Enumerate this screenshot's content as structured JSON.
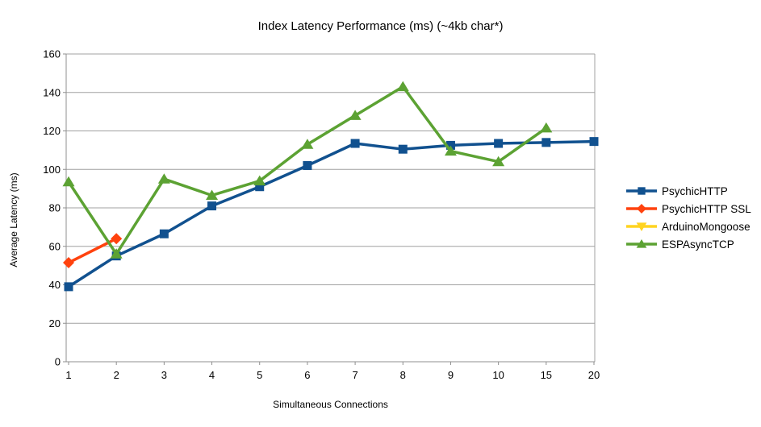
{
  "chart_data": {
    "type": "line",
    "title": "Index Latency Performance (ms) (~4kb char*)",
    "xlabel": "Simultaneous Connections",
    "ylabel": "Average Latency (ms)",
    "categories": [
      "1",
      "2",
      "3",
      "4",
      "5",
      "6",
      "7",
      "8",
      "9",
      "10",
      "15",
      "20"
    ],
    "ylim": [
      0,
      160
    ],
    "ytick_step": 20,
    "yticks": [
      0,
      20,
      40,
      60,
      80,
      100,
      120,
      140,
      160
    ],
    "grid": true,
    "legend_position": "right",
    "colors": {
      "grid": "#a0a0a0",
      "axis": "#8f8f8f",
      "text": "#000000",
      "background": "#ffffff"
    },
    "series": [
      {
        "name": "PsychicHTTP",
        "color": "#11518f",
        "marker": "square",
        "values": [
          39,
          55,
          66.5,
          81,
          91,
          102,
          113.5,
          110.5,
          112.5,
          113.5,
          114,
          114.5
        ]
      },
      {
        "name": "PsychicHTTP SSL",
        "color": "#ff420e",
        "marker": "diamond",
        "values": [
          51.5,
          64,
          null,
          null,
          null,
          null,
          null,
          null,
          null,
          null,
          null,
          null
        ]
      },
      {
        "name": "ArduinoMongoose",
        "color": "#ffd320",
        "marker": "triangle-down",
        "values": [
          null,
          null,
          null,
          null,
          null,
          null,
          null,
          null,
          null,
          null,
          null,
          null
        ]
      },
      {
        "name": "ESPAsyncTCP",
        "color": "#5ca233",
        "marker": "triangle-up",
        "values": [
          93.5,
          56,
          95,
          86.5,
          94,
          113,
          128,
          143,
          109.5,
          104,
          121.5,
          null
        ]
      }
    ]
  }
}
